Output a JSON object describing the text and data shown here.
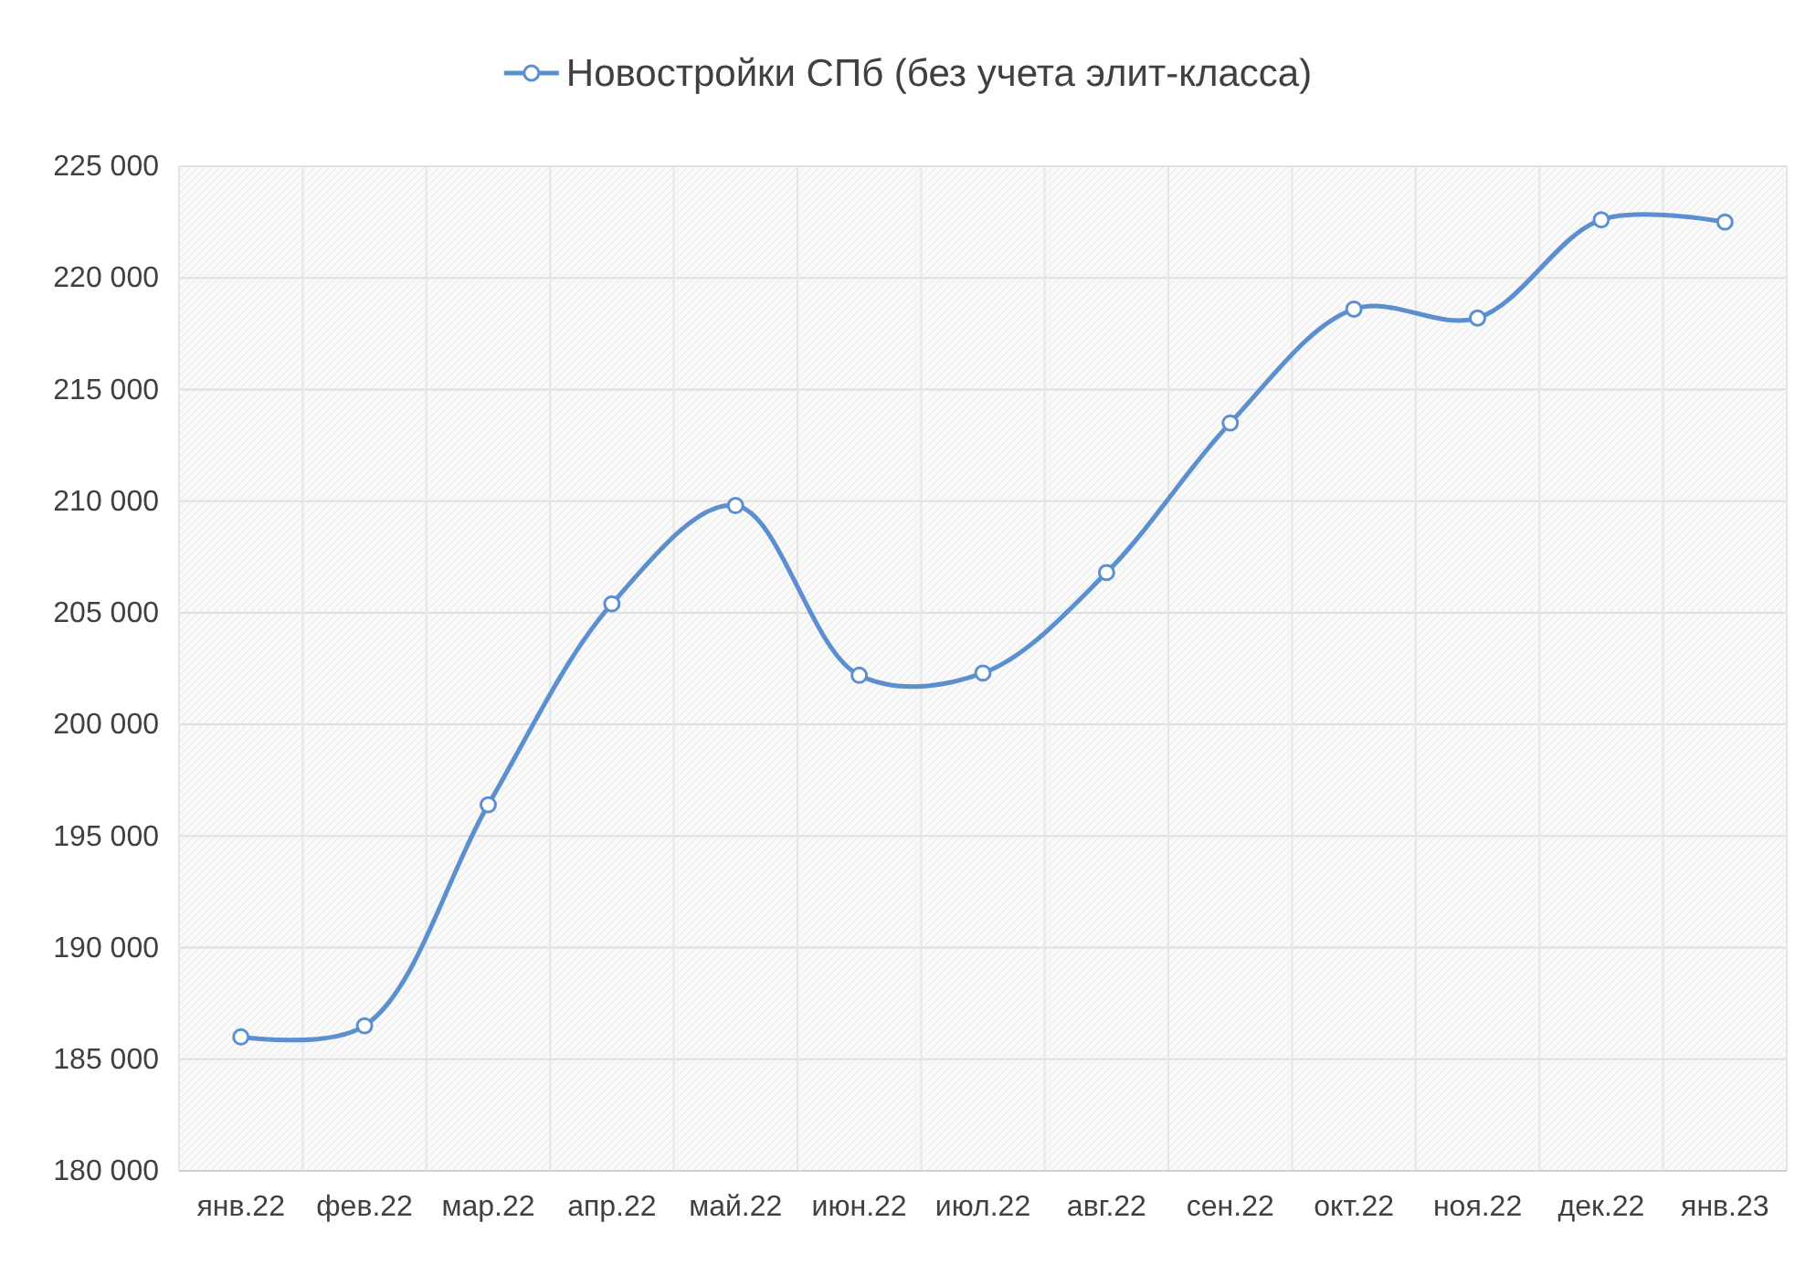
{
  "chart_data": {
    "type": "line",
    "legend": "top",
    "grid": true,
    "marker": "circle",
    "line_style": "solid",
    "categories": [
      "янв.22",
      "фев.22",
      "мар.22",
      "апр.22",
      "май.22",
      "июн.22",
      "июл.22",
      "авг.22",
      "сен.22",
      "окт.22",
      "ноя.22",
      "дек.22",
      "янв.23"
    ],
    "series": [
      {
        "name": "Новостройки СПб (без учета элит-класса)",
        "color": "#5b8fd0",
        "values": [
          186000,
          186500,
          196400,
          205400,
          209800,
          202200,
          202300,
          206800,
          213500,
          218600,
          218200,
          222600,
          222500
        ]
      }
    ],
    "ylim": [
      180000,
      225000
    ],
    "yticks": [
      {
        "value": 180000,
        "label": "180 000"
      },
      {
        "value": 185000,
        "label": "185 000"
      },
      {
        "value": 190000,
        "label": "190 000"
      },
      {
        "value": 195000,
        "label": "195 000"
      },
      {
        "value": 200000,
        "label": "200 000"
      },
      {
        "value": 205000,
        "label": "205 000"
      },
      {
        "value": 210000,
        "label": "210 000"
      },
      {
        "value": 215000,
        "label": "215 000"
      },
      {
        "value": 220000,
        "label": "220 000"
      },
      {
        "value": 225000,
        "label": "225 000"
      }
    ]
  }
}
